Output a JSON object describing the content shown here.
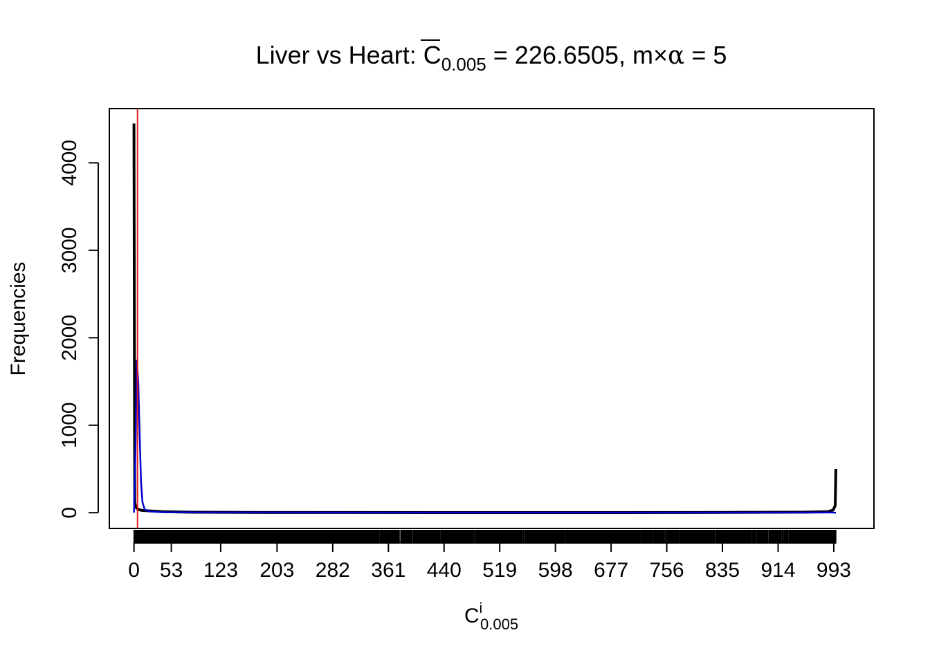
{
  "chart_data": {
    "type": "histogram",
    "title": {
      "prefix": "Liver vs Heart: ",
      "cbar_symbol": "C",
      "cbar_subscript": "0.005",
      "cbar_value": " = 226.6505, ",
      "m_symbol": "m",
      "times": "×",
      "alpha": "α",
      "m_alpha_value": " = 5"
    },
    "xlabel": {
      "symbol": "C",
      "superscript": "i",
      "subscript": "0.005"
    },
    "ylabel": "Frequencies",
    "x_ticks": [
      "0",
      "53",
      "123",
      "203",
      "282",
      "361",
      "440",
      "519",
      "598",
      "677",
      "756",
      "835",
      "914",
      "993"
    ],
    "y_ticks": [
      "0",
      "1000",
      "2000",
      "3000",
      "4000"
    ],
    "xlim": [
      -35,
      1050
    ],
    "ylim": [
      -180,
      4620
    ],
    "grid": false,
    "series": [
      {
        "color": "#000000",
        "line_type": "histogram",
        "points": [
          [
            0,
            4450
          ],
          [
            1,
            120
          ],
          [
            2,
            80
          ],
          [
            4,
            50
          ],
          [
            6,
            38
          ],
          [
            10,
            28
          ],
          [
            20,
            22
          ],
          [
            40,
            12
          ],
          [
            80,
            6
          ],
          [
            200,
            3
          ],
          [
            500,
            2
          ],
          [
            800,
            3
          ],
          [
            950,
            6
          ],
          [
            985,
            12
          ],
          [
            992,
            30
          ],
          [
            995,
            80
          ],
          [
            996,
            500
          ]
        ]
      },
      {
        "color": "#0000CC",
        "line_type": "density",
        "points": [
          [
            0,
            0
          ],
          [
            2,
            700
          ],
          [
            4,
            1740
          ],
          [
            6,
            1500
          ],
          [
            8,
            900
          ],
          [
            10,
            350
          ],
          [
            12,
            120
          ],
          [
            15,
            40
          ],
          [
            20,
            15
          ],
          [
            40,
            6
          ],
          [
            100,
            3
          ],
          [
            500,
            2
          ],
          [
            900,
            2
          ],
          [
            990,
            3
          ],
          [
            996,
            0
          ]
        ]
      }
    ],
    "vline": {
      "x": 5,
      "color": "#E41A1C"
    },
    "rug_color": "#000000"
  }
}
